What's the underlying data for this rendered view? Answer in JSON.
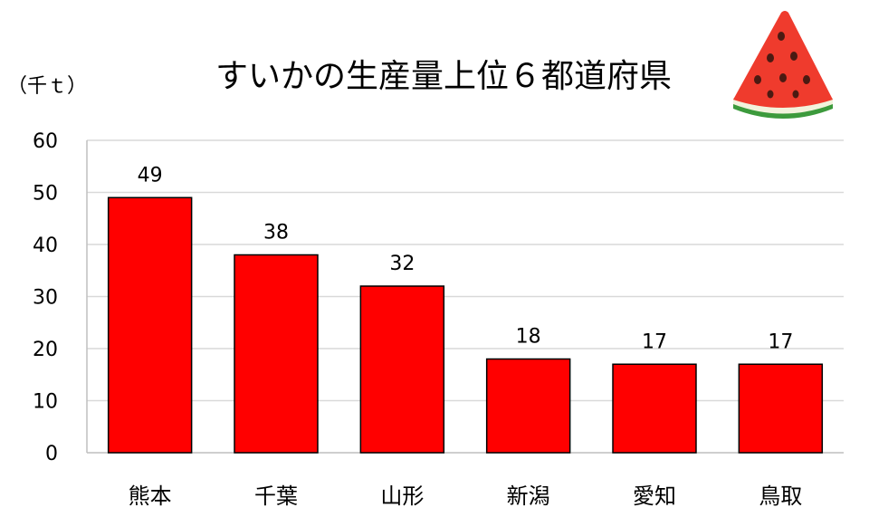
{
  "chart_data": {
    "type": "bar",
    "title": "すいかの生産量上位６都道府県",
    "unit_label": "（千ｔ）",
    "categories": [
      "熊本",
      "千葉",
      "山形",
      "新潟",
      "愛知",
      "鳥取"
    ],
    "values": [
      49,
      38,
      32,
      18,
      17,
      17
    ],
    "ylim": [
      0,
      60
    ],
    "yticks": [
      0,
      10,
      20,
      30,
      40,
      50,
      60
    ],
    "grid": true,
    "bar_color": "#ff0000",
    "bar_edge_color": "#000000",
    "grid_color": "#d9d9d9"
  },
  "decoration": {
    "icon": "watermelon-slice-icon",
    "colors": {
      "flesh": "#ef3b2d",
      "rind_white": "#f2f2dc",
      "rind_green": "#3c9a3c",
      "seed": "#4a1a12"
    }
  }
}
